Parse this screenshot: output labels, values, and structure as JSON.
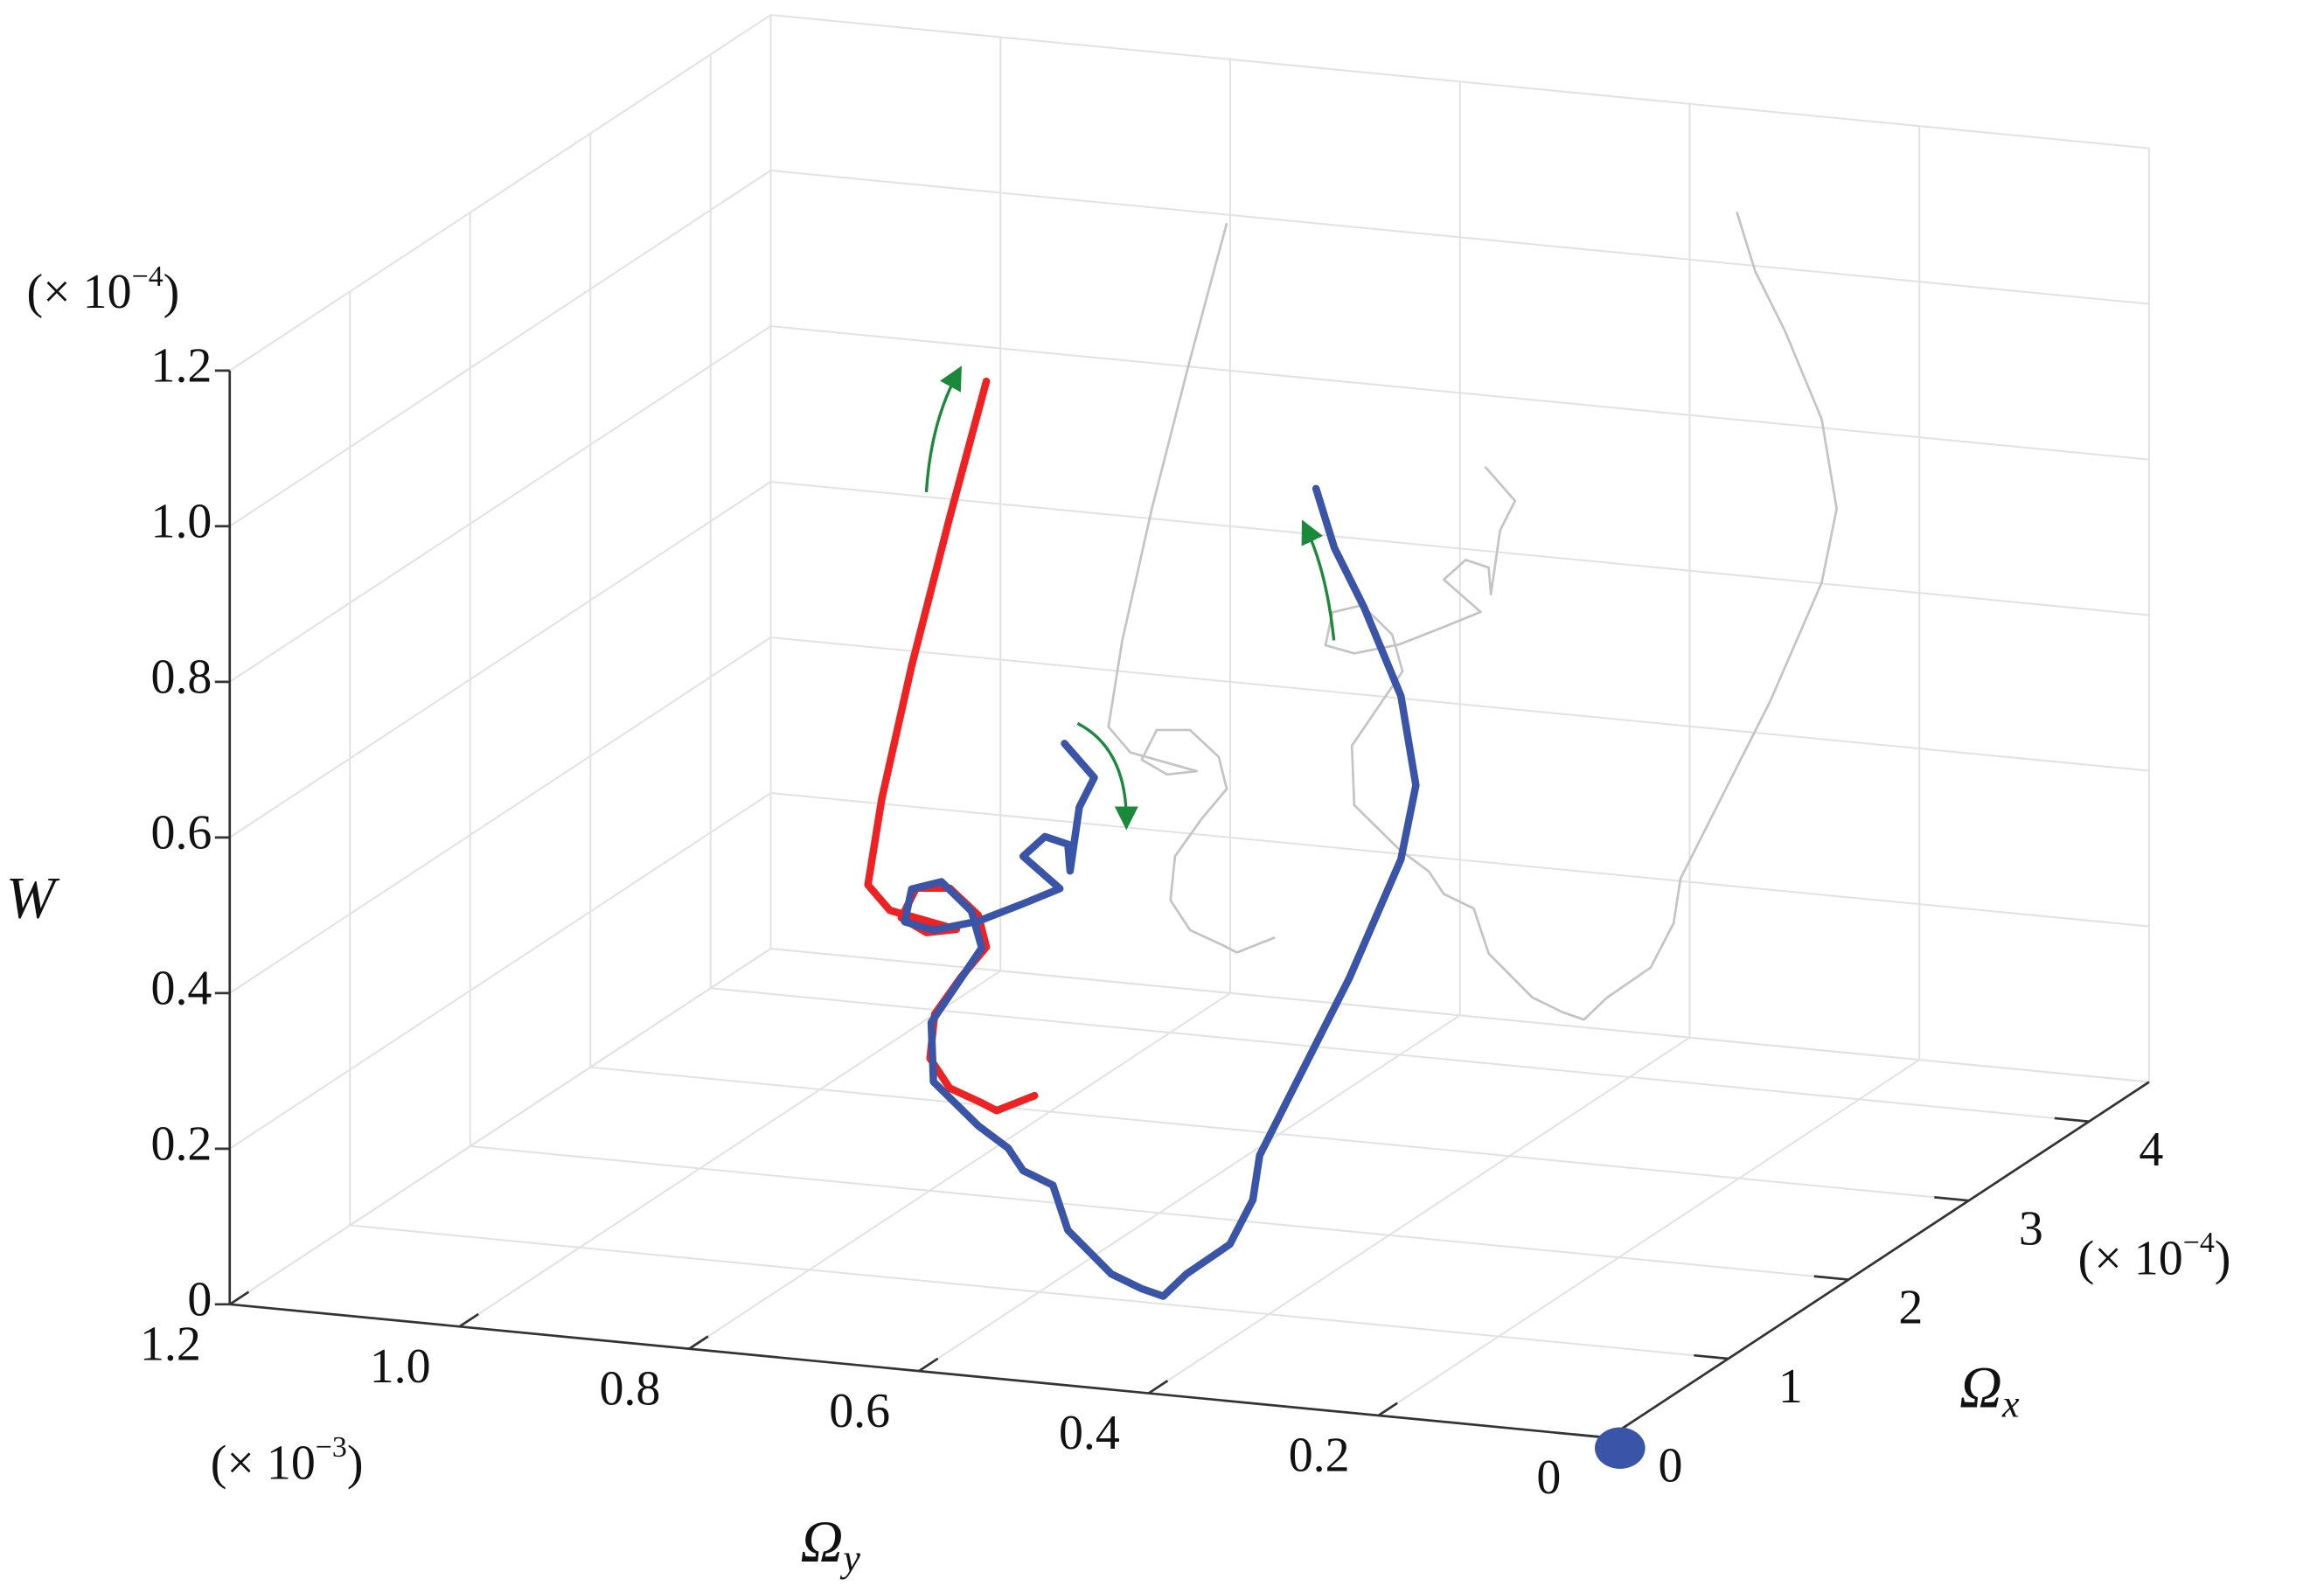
{
  "chart_data": {
    "type": "line3d",
    "x_label": {
      "symbol": "Ω",
      "sub": "x"
    },
    "y_label": {
      "symbol": "Ω",
      "sub": "y"
    },
    "z_label": "W",
    "x_multiplier": {
      "prefix": "(× 10",
      "exponent": "−4",
      "suffix": ")"
    },
    "y_multiplier": {
      "prefix": "(× 10",
      "exponent": "−3",
      "suffix": ")"
    },
    "z_multiplier": {
      "prefix": "(× 10",
      "exponent": "−4",
      "suffix": ")"
    },
    "xlim": [
      0,
      4.5
    ],
    "ylim": [
      0,
      1.2
    ],
    "zlim": [
      0,
      1.2
    ],
    "xticks": [
      0,
      1,
      2,
      3,
      4
    ],
    "yticks": [
      0,
      0.2,
      0.4,
      0.6,
      0.8,
      {
        "value": 1.0,
        "label": "1.0"
      },
      1.2
    ],
    "zticks": [
      0,
      0.2,
      0.4,
      0.6,
      0.8,
      {
        "value": 1.0,
        "label": "1.0"
      },
      1.2
    ],
    "grid": true,
    "shadow_color": "#c4c4c4",
    "series": [
      {
        "color": "#ee2222",
        "x": [
          2.5,
          2.5,
          2.5,
          2.5,
          2.5,
          2.5,
          2.5,
          2.5,
          2.5,
          2.5,
          2.5,
          2.5,
          2.5,
          2.5,
          2.5,
          2.5,
          2.5,
          2.5,
          2.5,
          2.5
        ],
        "y": [
          0.761,
          0.794,
          0.807,
          0.835,
          0.852,
          0.848,
          0.825,
          0.803,
          0.81,
          0.835,
          0.864,
          0.877,
          0.855,
          0.829,
          0.887,
          0.906,
          0.894,
          0.868,
          0.835,
          0.803
        ],
        "z": [
          0.077,
          0.053,
          0.061,
          0.076,
          0.112,
          0.169,
          0.22,
          0.262,
          0.302,
          0.333,
          0.329,
          0.289,
          0.273,
          0.281,
          0.297,
          0.327,
          0.439,
          0.614,
          0.809,
          0.989
        ]
      },
      {
        "color": "#3a55a8",
        "x": [
          1,
          1,
          1,
          1,
          1,
          1,
          1,
          1,
          1,
          1,
          1,
          1,
          1,
          1,
          1,
          1,
          1,
          1,
          1,
          1,
          1,
          1,
          1,
          1,
          1,
          1,
          1,
          1,
          1,
          1,
          1,
          1,
          1,
          1,
          1,
          1,
          1,
          1,
          1
        ],
        "y": [
          0.578,
          0.552,
          0.565,
          0.573,
          0.575,
          0.595,
          0.614,
          0.582,
          0.614,
          0.653,
          0.692,
          0.717,
          0.711,
          0.685,
          0.659,
          0.65,
          0.672,
          0.694,
          0.692,
          0.653,
          0.627,
          0.614,
          0.588,
          0.575,
          0.537,
          0.511,
          0.492,
          0.472,
          0.434,
          0.414,
          0.408,
          0.382,
          0.33,
          0.285,
          0.272,
          0.285,
          0.317,
          0.343,
          0.359
        ],
        "z": [
          0.708,
          0.668,
          0.628,
          0.545,
          0.579,
          0.586,
          0.558,
          0.521,
          0.497,
          0.469,
          0.452,
          0.459,
          0.502,
          0.515,
          0.481,
          0.435,
          0.384,
          0.333,
          0.257,
          0.206,
          0.181,
          0.154,
          0.139,
          0.083,
          0.032,
          0.017,
          0.01,
          0.041,
          0.085,
          0.145,
          0.203,
          0.283,
          0.442,
          0.601,
          0.698,
          0.811,
          0.92,
          0.993,
          1.067
        ]
      }
    ]
  }
}
